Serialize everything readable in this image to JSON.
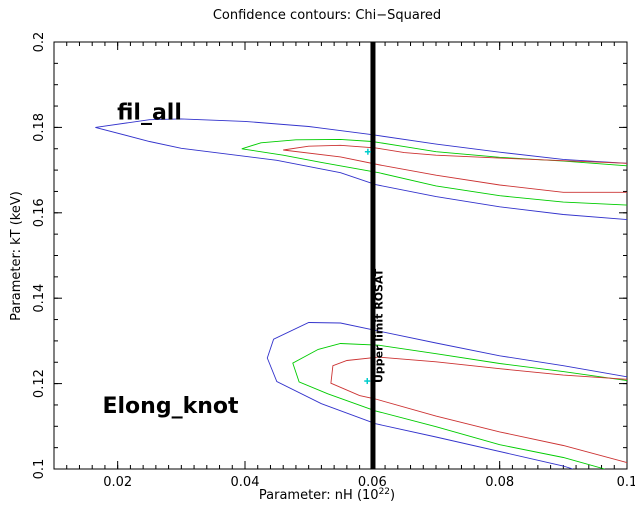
{
  "chart_data": {
    "type": "line",
    "title": "Confidence contours: Chi−Squared",
    "xlabel": "Parameter: nH (10",
    "xlabel_sup": "22",
    "xlabel_end": ")",
    "ylabel": "Parameter: kT (keV)",
    "xlim": [
      0.01,
      0.1
    ],
    "ylim": [
      0.1,
      0.2
    ],
    "x_ticks": [
      {
        "value": 0.02,
        "label": "0.02"
      },
      {
        "value": 0.04,
        "label": "0.04"
      },
      {
        "value": 0.06,
        "label": "0.06"
      },
      {
        "value": 0.08,
        "label": "0.08"
      },
      {
        "value": 0.1,
        "label": "0.1"
      }
    ],
    "y_ticks": [
      {
        "value": 0.1,
        "label": "0.1"
      },
      {
        "value": 0.12,
        "label": "0.12"
      },
      {
        "value": 0.14,
        "label": "0.14"
      },
      {
        "value": 0.16,
        "label": "0.16"
      },
      {
        "value": 0.18,
        "label": "0.18"
      },
      {
        "value": 0.2,
        "label": "0.2"
      }
    ],
    "grid": false,
    "annotations": [
      {
        "name": "fil-all-label",
        "text": "fil_all",
        "x": 0.025,
        "y": 0.1818
      },
      {
        "name": "elong-knot-label",
        "text": "Elong_knot",
        "x": 0.0283,
        "y": 0.1131
      },
      {
        "name": "upper-limit-label",
        "text": "Upper limit ROSAT",
        "x": 0.0616,
        "y": 0.1335
      }
    ],
    "vertical_line": {
      "x": 0.0601,
      "color": "#000000"
    },
    "best_fit_points": [
      {
        "name": "fil-all-best-fit",
        "x": 0.0593,
        "y": 0.1743,
        "color": "#00cccc"
      },
      {
        "name": "elong-knot-best-fit",
        "x": 0.0592,
        "y": 0.1206,
        "color": "#00cccc"
      }
    ],
    "series": [
      {
        "name": "",
        "color": "#3333cc",
        "group": "fil_all",
        "points": [
          [
            0.1,
            0.1584
          ],
          [
            0.09,
            0.1596
          ],
          [
            0.08,
            0.1614
          ],
          [
            0.07,
            0.1638
          ],
          [
            0.0605,
            0.1666
          ],
          [
            0.055,
            0.1694
          ],
          [
            0.045,
            0.1723
          ],
          [
            0.03,
            0.1751
          ],
          [
            0.025,
            0.1767
          ],
          [
            0.0165,
            0.18
          ],
          [
            0.025,
            0.1818
          ],
          [
            0.03,
            0.182
          ],
          [
            0.04,
            0.1814
          ],
          [
            0.05,
            0.1802
          ],
          [
            0.06,
            0.1783
          ],
          [
            0.07,
            0.1761
          ],
          [
            0.08,
            0.1742
          ],
          [
            0.09,
            0.1725
          ],
          [
            0.1,
            0.1716
          ]
        ]
      },
      {
        "name": "",
        "color": "#00cc00",
        "group": "fil_all",
        "points": [
          [
            0.1,
            0.1618
          ],
          [
            0.09,
            0.1625
          ],
          [
            0.08,
            0.164
          ],
          [
            0.07,
            0.1663
          ],
          [
            0.061,
            0.1694
          ],
          [
            0.052,
            0.1718
          ],
          [
            0.046,
            0.1735
          ],
          [
            0.0395,
            0.175
          ],
          [
            0.0425,
            0.1764
          ],
          [
            0.048,
            0.1771
          ],
          [
            0.055,
            0.1772
          ],
          [
            0.06,
            0.1767
          ],
          [
            0.065,
            0.1755
          ],
          [
            0.07,
            0.1743
          ],
          [
            0.08,
            0.173
          ],
          [
            0.09,
            0.1721
          ],
          [
            0.1,
            0.171
          ]
        ]
      },
      {
        "name": "",
        "color": "#cc3333",
        "group": "fil_all",
        "points": [
          [
            0.1,
            0.1648
          ],
          [
            0.09,
            0.1648
          ],
          [
            0.08,
            0.1665
          ],
          [
            0.07,
            0.1688
          ],
          [
            0.0612,
            0.1712
          ],
          [
            0.055,
            0.1731
          ],
          [
            0.046,
            0.1747
          ],
          [
            0.05,
            0.1756
          ],
          [
            0.055,
            0.1758
          ],
          [
            0.0605,
            0.1752
          ],
          [
            0.065,
            0.1741
          ],
          [
            0.07,
            0.1735
          ],
          [
            0.08,
            0.1728
          ],
          [
            0.09,
            0.1722
          ],
          [
            0.1,
            0.1716
          ]
        ]
      },
      {
        "name": "",
        "color": "#3333cc",
        "group": "Elong_knot",
        "points": [
          [
            0.0915,
            0.1
          ],
          [
            0.09,
            0.1007
          ],
          [
            0.07,
            0.1075
          ],
          [
            0.0605,
            0.1106
          ],
          [
            0.052,
            0.1153
          ],
          [
            0.045,
            0.1205
          ],
          [
            0.0435,
            0.126
          ],
          [
            0.0445,
            0.1304
          ],
          [
            0.05,
            0.1343
          ],
          [
            0.055,
            0.1342
          ],
          [
            0.061,
            0.1323
          ],
          [
            0.07,
            0.1295
          ],
          [
            0.08,
            0.1265
          ],
          [
            0.09,
            0.1242
          ],
          [
            0.1,
            0.1216
          ]
        ]
      },
      {
        "name": "",
        "color": "#00cc00",
        "group": "Elong_knot",
        "points": [
          [
            0.0965,
            0.1
          ],
          [
            0.09,
            0.1027
          ],
          [
            0.08,
            0.1057
          ],
          [
            0.07,
            0.1099
          ],
          [
            0.0605,
            0.1136
          ],
          [
            0.053,
            0.1176
          ],
          [
            0.0485,
            0.1204
          ],
          [
            0.0475,
            0.1248
          ],
          [
            0.0515,
            0.128
          ],
          [
            0.055,
            0.1294
          ],
          [
            0.061,
            0.129
          ],
          [
            0.07,
            0.127
          ],
          [
            0.08,
            0.1247
          ],
          [
            0.09,
            0.1228
          ],
          [
            0.1,
            0.1207
          ]
        ]
      },
      {
        "name": "",
        "color": "#cc3333",
        "group": "Elong_knot",
        "points": [
          [
            0.1,
            0.1015
          ],
          [
            0.09,
            0.1055
          ],
          [
            0.08,
            0.1087
          ],
          [
            0.07,
            0.1124
          ],
          [
            0.0605,
            0.1164
          ],
          [
            0.058,
            0.1172
          ],
          [
            0.0535,
            0.1201
          ],
          [
            0.0538,
            0.1242
          ],
          [
            0.056,
            0.1254
          ],
          [
            0.061,
            0.1262
          ],
          [
            0.07,
            0.1251
          ],
          [
            0.08,
            0.1235
          ],
          [
            0.09,
            0.122
          ],
          [
            0.1,
            0.121
          ]
        ]
      }
    ]
  }
}
